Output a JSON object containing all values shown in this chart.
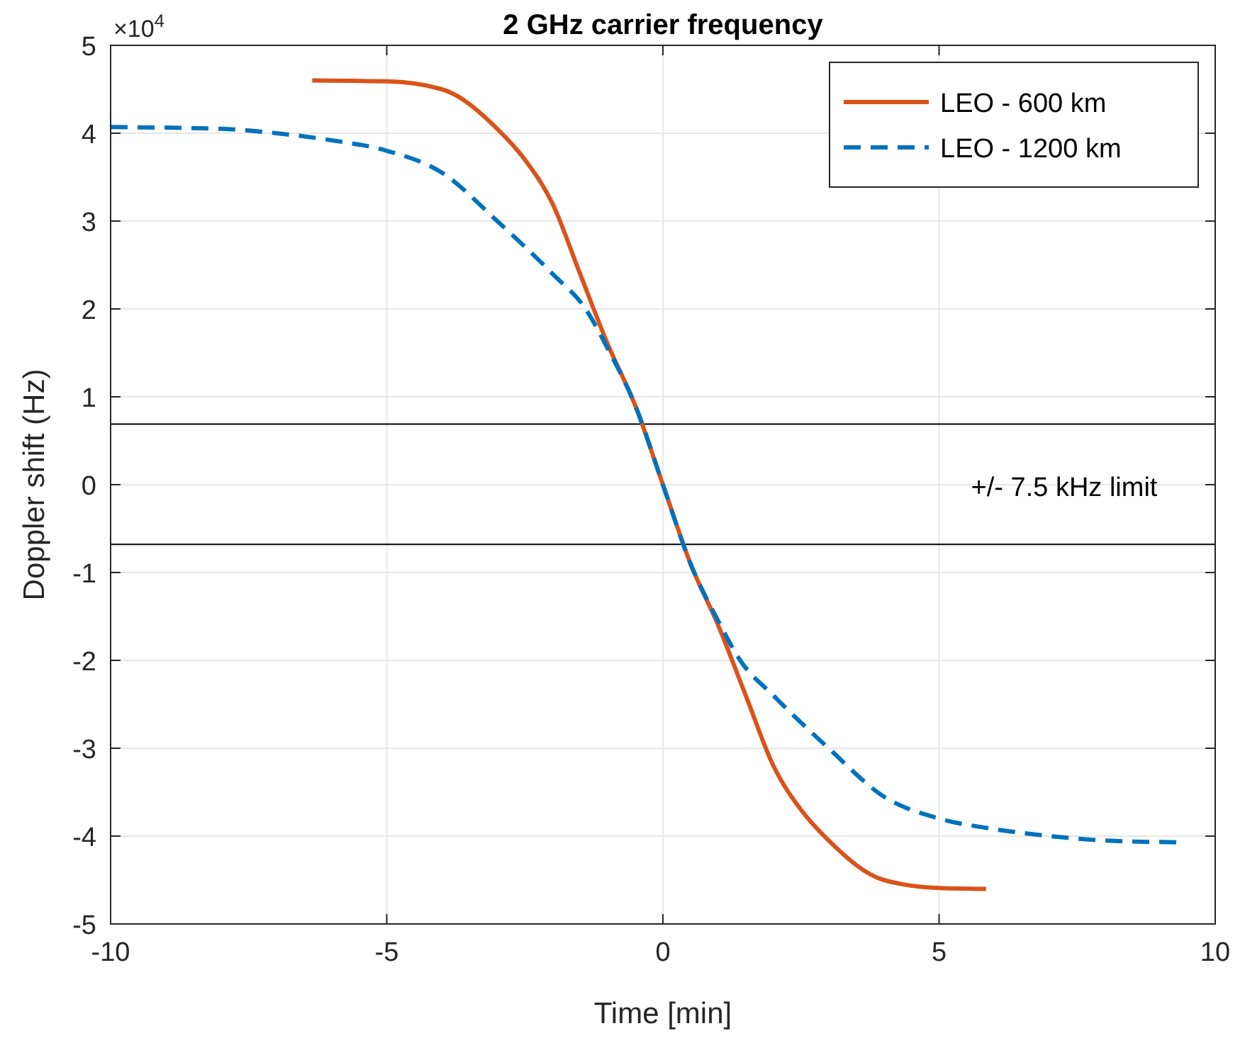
{
  "chart_data": {
    "type": "line",
    "title": "2 GHz carrier frequency",
    "xlabel": "Time [min]",
    "ylabel": "Doppler shift (Hz)",
    "xlim": [
      -10,
      10
    ],
    "xticks": [
      -10,
      -5,
      0,
      5,
      10
    ],
    "ylim": [
      -5,
      5
    ],
    "yticks": [
      -5,
      -4,
      -3,
      -2,
      -1,
      0,
      1,
      2,
      3,
      4,
      5
    ],
    "grid": true,
    "legend": "top right",
    "marker": "none",
    "series": [
      {
        "name": "LEO - 600 km",
        "color": "#d95319",
        "line_style": "solid",
        "x": [
          -6.35,
          -5,
          -4,
          -3,
          -2.5,
          -2,
          -1.5,
          -1,
          -0.5,
          0,
          0.5,
          1,
          1.5,
          2,
          2.5,
          3,
          4,
          5,
          5.85
        ],
        "values": [
          4.6,
          4.59,
          4.5,
          4.05,
          3.7,
          3.2,
          2.4,
          1.6,
          0.9,
          0,
          -0.9,
          -1.6,
          -2.4,
          -3.2,
          -3.7,
          -4.05,
          -4.5,
          -4.59,
          -4.6
        ]
      },
      {
        "name": "LEO - 1200 km",
        "color": "#0072bd",
        "line_style": "dashed",
        "x": [
          -10,
          -8,
          -7,
          -6,
          -5,
          -4,
          -3,
          -2,
          -1.4,
          -1,
          -0.5,
          0,
          0.5,
          1,
          1.4,
          2,
          3,
          4,
          5,
          6,
          7,
          8,
          9.3
        ],
        "values": [
          4.07,
          4.05,
          4.0,
          3.92,
          3.8,
          3.55,
          3.0,
          2.4,
          2.0,
          1.55,
          0.9,
          0,
          -0.9,
          -1.55,
          -2.0,
          -2.4,
          -3.0,
          -3.55,
          -3.8,
          -3.92,
          -4.0,
          -4.05,
          -4.07
        ]
      }
    ],
    "ref_lines": [
      {
        "axis": "y",
        "value": 0.69,
        "color": "#000000"
      },
      {
        "axis": "y",
        "value": -0.68,
        "color": "#000000"
      }
    ],
    "annotations": [
      "+/- 7.5 kHz limit",
      "×10$^{4}$"
    ]
  }
}
